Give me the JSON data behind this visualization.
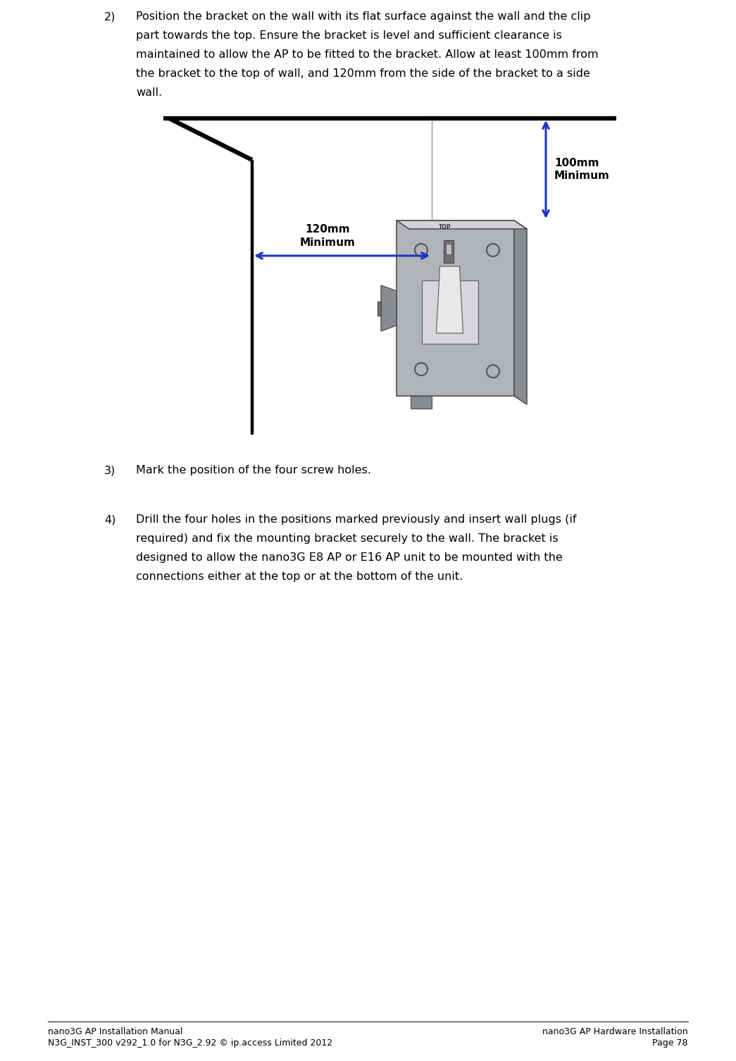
{
  "background_color": "#ffffff",
  "text_color": "#000000",
  "blue_color": "#1a35c8",
  "font_size_body": 11.5,
  "font_size_footer": 9.0,
  "font_size_label": 11.0,
  "footer_left_line1": "nano3G AP Installation Manual",
  "footer_left_line2": "N3G_INST_300 v292_1.0 for N3G_2.92 © ip.access Limited 2012",
  "footer_right_line1": "nano3G AP Hardware Installation",
  "footer_right_line2": "Page 78",
  "item2_lines": [
    "Position the bracket on the wall with its flat surface against the wall and the clip",
    "part towards the top. Ensure the bracket is level and sufficient clearance is",
    "maintained to allow the AP to be fitted to the bracket. Allow at least 100mm from",
    "the bracket to the top of wall, and 120mm from the side of the bracket to a side",
    "wall."
  ],
  "item3_text": "Mark the position of the four screw holes.",
  "item4_lines": [
    "Drill the four holes in the positions marked previously and insert wall plugs (if",
    "required) and fix the mounting bracket securely to the wall. The bracket is",
    "designed to allow the nano3G E8 AP or E16 AP unit to be mounted with the",
    "connections either at the top or at the bottom of the unit."
  ],
  "label_100mm": "100mm\nMinimum",
  "label_120mm": "120mm\nMinimum"
}
